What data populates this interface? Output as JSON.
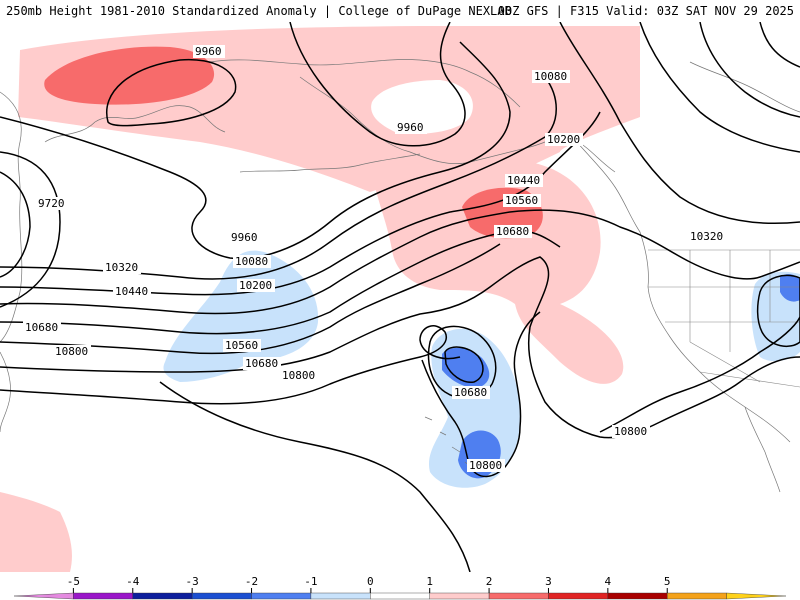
{
  "header": {
    "left_title": "250mb Height 1981-2010 Standardized Anomaly | College of DuPage NEXLAB",
    "right_title": "00Z GFS | F315 Valid: 03Z SAT NOV 29 2025"
  },
  "colors": {
    "pos_1": "#ffcccc",
    "pos_2": "#f76b6b",
    "neg_1": "#c8e2fb",
    "neg_2": "#4f7ff0",
    "contour": "#000000",
    "coast": "#777777"
  },
  "contours": [
    {
      "value": "9960",
      "label": "9960"
    },
    {
      "value": "9720",
      "label": "9720"
    },
    {
      "value": "10080",
      "label": "10080"
    },
    {
      "value": "10200",
      "label": "10200"
    },
    {
      "value": "10320",
      "label": "10320"
    },
    {
      "value": "10440",
      "label": "10440"
    },
    {
      "value": "10560",
      "label": "10560"
    },
    {
      "value": "10680",
      "label": "10680"
    },
    {
      "value": "10800",
      "label": "10800"
    }
  ],
  "colorbar": {
    "ticks": [
      "-5",
      "-4",
      "-3",
      "-2",
      "-1",
      "0",
      "1",
      "2",
      "3",
      "4",
      "5"
    ],
    "colors": [
      "#e48ae0",
      "#9a16c9",
      "#0d1f9c",
      "#1b4fd1",
      "#4f7ff0",
      "#c8e2fb",
      "#ffffff",
      "#ffcccc",
      "#f76b6b",
      "#e02424",
      "#a80000",
      "#f4a21a",
      "#ffd21a"
    ]
  }
}
